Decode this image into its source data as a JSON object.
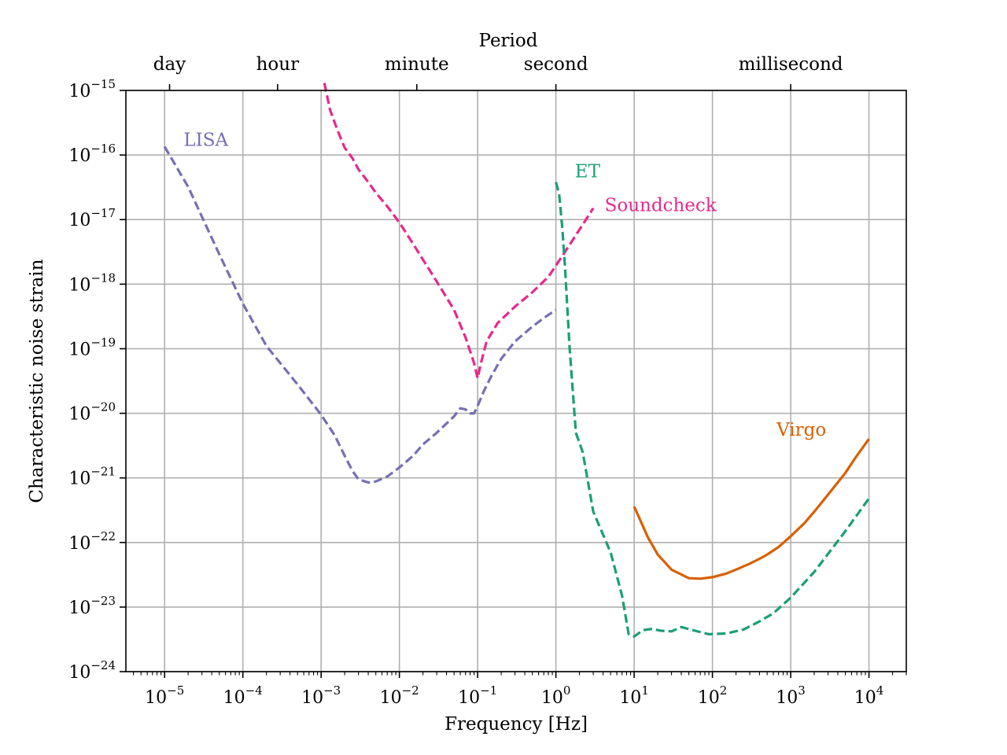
{
  "chart_data": {
    "type": "line",
    "title": "",
    "xlabel": "Frequency [Hz]",
    "ylabel": "Characteristic noise strain",
    "x_scale": "log",
    "y_scale": "log",
    "xlim": [
      3.2e-06,
      30000
    ],
    "ylim": [
      1e-24,
      1e-15
    ],
    "grid": true,
    "x_ticks": [
      {
        "value": 1e-05,
        "base": "10",
        "exp": "−5"
      },
      {
        "value": 0.0001,
        "base": "10",
        "exp": "−4"
      },
      {
        "value": 0.001,
        "base": "10",
        "exp": "−3"
      },
      {
        "value": 0.01,
        "base": "10",
        "exp": "−2"
      },
      {
        "value": 0.1,
        "base": "10",
        "exp": "−1"
      },
      {
        "value": 1,
        "base": "10",
        "exp": "0"
      },
      {
        "value": 10,
        "base": "10",
        "exp": "1"
      },
      {
        "value": 100,
        "base": "10",
        "exp": "2"
      },
      {
        "value": 1000,
        "base": "10",
        "exp": "3"
      },
      {
        "value": 10000,
        "base": "10",
        "exp": "4"
      }
    ],
    "y_ticks": [
      {
        "value": 1e-15,
        "base": "10",
        "exp": "−15"
      },
      {
        "value": 1e-16,
        "base": "10",
        "exp": "−16"
      },
      {
        "value": 1e-17,
        "base": "10",
        "exp": "−17"
      },
      {
        "value": 1e-18,
        "base": "10",
        "exp": "−18"
      },
      {
        "value": 1e-19,
        "base": "10",
        "exp": "−19"
      },
      {
        "value": 1e-20,
        "base": "10",
        "exp": "−20"
      },
      {
        "value": 1e-21,
        "base": "10",
        "exp": "−21"
      },
      {
        "value": 1e-22,
        "base": "10",
        "exp": "−22"
      },
      {
        "value": 1e-23,
        "base": "10",
        "exp": "−23"
      },
      {
        "value": 1e-24,
        "base": "10",
        "exp": "−24"
      }
    ],
    "secondary_x_axis": {
      "label": "Period",
      "ticks": [
        {
          "label": "day",
          "value": 1.157e-05
        },
        {
          "label": "hour",
          "value": 0.0002778
        },
        {
          "label": "minute",
          "value": 0.01667
        },
        {
          "label": "second",
          "value": 1
        },
        {
          "label": "millisecond",
          "value": 1000
        }
      ]
    },
    "series": [
      {
        "name": "LISA",
        "color": "#7570b3",
        "dash": true,
        "label_at": [
          1.75e-05,
          1.38e-16
        ],
        "x": [
          1e-05,
          2e-05,
          5e-05,
          0.0001,
          0.0002,
          0.0005,
          0.001,
          0.0015,
          0.002,
          0.0025,
          0.003,
          0.004,
          0.005,
          0.007,
          0.01,
          0.015,
          0.02,
          0.03,
          0.05,
          0.06,
          0.07,
          0.08,
          0.09,
          0.1,
          0.12,
          0.15,
          0.2,
          0.3,
          0.5,
          0.7,
          1.0
        ],
        "y": [
          1.35e-16,
          3.2e-17,
          2.9e-18,
          5e-19,
          1.1e-19,
          2.8e-20,
          9.5e-21,
          4.5e-21,
          2.2e-21,
          1.3e-21,
          9.5e-22,
          8.5e-22,
          8.8e-22,
          1.05e-21,
          1.45e-21,
          2.2e-21,
          3.3e-21,
          5e-21,
          9e-21,
          1.2e-20,
          1.15e-20,
          1e-20,
          1e-20,
          1.3e-20,
          2.2e-20,
          3.8e-20,
          7e-20,
          1.3e-19,
          2.2e-19,
          3e-19,
          4e-19
        ]
      },
      {
        "name": "Soundcheck",
        "color": "#e7298a",
        "dash": true,
        "label_at": [
          4.2,
          1.35e-17
        ],
        "x": [
          0.0011,
          0.0013,
          0.0016,
          0.002,
          0.0025,
          0.003,
          0.004,
          0.005,
          0.007,
          0.01,
          0.015,
          0.02,
          0.03,
          0.05,
          0.07,
          0.09,
          0.1,
          0.11,
          0.13,
          0.18,
          0.3,
          0.5,
          0.8,
          1.2,
          2.0,
          3.0
        ],
        "y": [
          1.3e-15,
          5e-16,
          2.5e-16,
          1.3e-16,
          9e-17,
          6e-17,
          3.8e-17,
          2.6e-17,
          1.6e-17,
          9e-18,
          4.2e-18,
          2.4e-18,
          1.1e-18,
          4e-19,
          1.5e-19,
          6e-20,
          3.5e-20,
          6e-20,
          1.3e-19,
          2.5e-19,
          4.5e-19,
          7.5e-19,
          1.3e-18,
          2.7e-18,
          7e-18,
          1.5e-17
        ]
      },
      {
        "name": "ET",
        "color": "#1b9e77",
        "dash": true,
        "label_at": [
          1.75,
          4.5e-17
        ],
        "x": [
          1.0,
          1.1,
          1.2,
          1.3,
          1.5,
          1.8,
          2.2,
          3.0,
          5.0,
          7.0,
          8.5,
          10,
          13,
          17,
          22,
          30,
          40,
          60,
          90,
          150,
          250,
          400,
          600,
          1000,
          2000,
          5000,
          10000
        ],
        "y": [
          3.8e-17,
          2.5e-17,
          8e-18,
          2e-18,
          1e-19,
          5e-21,
          2.5e-21,
          3e-22,
          7e-23,
          1.5e-23,
          3.8e-24,
          3.5e-24,
          4.4e-24,
          4.6e-24,
          4.3e-24,
          4.2e-24,
          4.9e-24,
          4.3e-24,
          3.8e-24,
          3.9e-24,
          4.5e-24,
          6e-24,
          8e-24,
          1.4e-23,
          3.5e-23,
          1.5e-22,
          4.8e-22
        ]
      },
      {
        "name": "Virgo",
        "color": "#d95f02",
        "dash": false,
        "label_at": [
          660,
          4.5e-21
        ],
        "x": [
          10,
          15,
          20,
          30,
          50,
          70,
          100,
          150,
          200,
          300,
          400,
          500,
          700,
          1000,
          1500,
          2000,
          3000,
          5000,
          7000,
          10000
        ],
        "y": [
          3.6e-22,
          1.2e-22,
          6.5e-23,
          3.8e-23,
          2.8e-23,
          2.75e-23,
          2.9e-23,
          3.3e-23,
          3.8e-23,
          4.7e-23,
          5.6e-23,
          6.5e-23,
          8.5e-23,
          1.25e-22,
          2e-22,
          3e-22,
          5.5e-22,
          1.2e-21,
          2.2e-21,
          4e-21
        ]
      }
    ]
  }
}
